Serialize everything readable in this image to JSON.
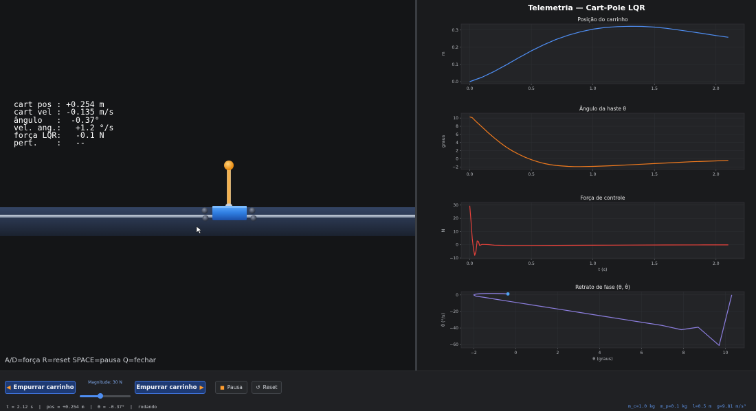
{
  "hud": {
    "lines": [
      "cart pos : +0.254 m",
      "cart vel : -0.135 m/s",
      "ângulo   :  -0.37°",
      "vel. ang.:   +1.2 °/s",
      "força LQR:   -0.1 N",
      "pert.    :   --"
    ]
  },
  "help_text": "A/D=força R=reset SPACE=pausa Q=fechar",
  "telemetry": {
    "title": "Telemetria — Cart-Pole LQR",
    "plots": [
      {
        "title": "Posição do carrinho",
        "ylabel": "m",
        "xlabel": "",
        "color": "#4f8ff5",
        "xticks": [
          "0.0",
          "0.5",
          "1.0",
          "1.5",
          "2.0"
        ],
        "yticks": [
          "0.0",
          "0.1",
          "0.2",
          "0.3"
        ]
      },
      {
        "title": "Ângulo da haste θ",
        "ylabel": "graus",
        "xlabel": "",
        "color": "#f07a1e",
        "xticks": [
          "0.0",
          "0.5",
          "1.0",
          "1.5",
          "2.0"
        ],
        "yticks": [
          "−2",
          "0",
          "2",
          "4",
          "6",
          "8",
          "10"
        ]
      },
      {
        "title": "Força de controle",
        "ylabel": "N",
        "xlabel": "t (s)",
        "color": "#e8423b",
        "xticks": [
          "0.0",
          "0.5",
          "1.0",
          "1.5",
          "2.0"
        ],
        "yticks": [
          "−10",
          "0",
          "10",
          "20",
          "30"
        ]
      },
      {
        "title": "Retrato de fase  (θ, θ̇)",
        "ylabel": "θ̇ (°/s)",
        "xlabel": "θ (graus)",
        "color": "#8d7fe0",
        "marker_color": "#4fa3f5",
        "xticks": [
          "−2",
          "0",
          "2",
          "4",
          "6",
          "8",
          "10"
        ],
        "yticks": [
          "−60",
          "−40",
          "−20",
          "0"
        ]
      }
    ]
  },
  "chart_data": [
    {
      "type": "line",
      "title": "Posição do carrinho",
      "xlabel": "",
      "ylabel": "m",
      "xlim": [
        -0.07,
        2.23
      ],
      "ylim": [
        -0.012,
        0.335
      ],
      "series": [
        {
          "x": [
            0.0,
            0.1,
            0.2,
            0.3,
            0.4,
            0.5,
            0.6,
            0.7,
            0.8,
            0.9,
            1.0,
            1.1,
            1.2,
            1.3,
            1.4,
            1.5,
            1.6,
            1.7,
            1.8,
            1.9,
            2.0,
            2.1
          ],
          "values": [
            0.0,
            0.026,
            0.06,
            0.099,
            0.14,
            0.179,
            0.214,
            0.245,
            0.27,
            0.29,
            0.305,
            0.315,
            0.32,
            0.322,
            0.321,
            0.317,
            0.31,
            0.3,
            0.29,
            0.279,
            0.268,
            0.258
          ]
        }
      ]
    },
    {
      "type": "line",
      "title": "Ângulo da haste θ",
      "xlabel": "",
      "ylabel": "graus",
      "xlim": [
        -0.07,
        2.23
      ],
      "ylim": [
        -2.6,
        11.2
      ],
      "series": [
        {
          "x": [
            0.0,
            0.02,
            0.05,
            0.1,
            0.15,
            0.2,
            0.25,
            0.3,
            0.35,
            0.4,
            0.45,
            0.5,
            0.55,
            0.6,
            0.65,
            0.7,
            0.75,
            0.8,
            0.85,
            0.9,
            1.0,
            1.1,
            1.2,
            1.3,
            1.4,
            1.5,
            1.6,
            1.7,
            1.8,
            1.9,
            2.0,
            2.1
          ],
          "values": [
            10.3,
            10.1,
            9.2,
            7.8,
            6.4,
            5.1,
            3.9,
            2.8,
            1.9,
            1.1,
            0.4,
            -0.2,
            -0.7,
            -1.1,
            -1.4,
            -1.6,
            -1.75,
            -1.85,
            -1.9,
            -1.9,
            -1.85,
            -1.75,
            -1.6,
            -1.45,
            -1.3,
            -1.15,
            -1.0,
            -0.85,
            -0.7,
            -0.6,
            -0.5,
            -0.37
          ]
        }
      ]
    },
    {
      "type": "line",
      "title": "Força de controle",
      "xlabel": "t (s)",
      "ylabel": "N",
      "xlim": [
        -0.07,
        2.23
      ],
      "ylim": [
        -10.5,
        32
      ],
      "series": [
        {
          "x": [
            0.0,
            0.01,
            0.02,
            0.03,
            0.04,
            0.05,
            0.06,
            0.07,
            0.08,
            0.1,
            0.15,
            0.2,
            0.3,
            0.5,
            0.7,
            1.0,
            1.3,
            1.6,
            1.9,
            2.1
          ],
          "values": [
            29.5,
            18.0,
            5.0,
            -3.0,
            -8.0,
            -5.0,
            3.0,
            2.5,
            -0.5,
            0.3,
            0.1,
            -0.3,
            -0.5,
            -0.5,
            -0.45,
            -0.35,
            -0.25,
            -0.15,
            -0.1,
            -0.1
          ]
        }
      ]
    },
    {
      "type": "line",
      "title": "Retrato de fase  (θ, θ̇)",
      "xlabel": "θ (graus)",
      "ylabel": "θ̇ (°/s)",
      "xlim": [
        -2.6,
        10.9
      ],
      "ylim": [
        -64,
        4
      ],
      "series": [
        {
          "x": [
            10.3,
            9.7,
            8.7,
            7.9,
            7.0,
            6.0,
            5.0,
            4.0,
            3.0,
            2.0,
            1.0,
            0.0,
            -1.0,
            -1.5,
            -1.9,
            -2.0,
            -1.9,
            -1.7,
            -1.4,
            -1.0,
            -0.6,
            -0.37
          ],
          "values": [
            0,
            -61,
            -39,
            -42,
            -37,
            -33,
            -29,
            -25,
            -21,
            -17,
            -13,
            -9,
            -5,
            -3,
            -1.5,
            0,
            1.0,
            1.5,
            1.8,
            1.8,
            1.6,
            1.2
          ]
        }
      ],
      "current_point": {
        "x": -0.37,
        "y": 1.2
      }
    }
  ],
  "controls": {
    "push_left_label": "Empurrar carrinho",
    "push_right_label": "Empurrar carrinho",
    "magnitude_label": "Magnitude: 30 N",
    "magnitude_fraction": 0.4,
    "pause_label": "Pausa",
    "reset_label": "Reset"
  },
  "status_text": "t = 2.12 s  |  pos = +0.254 m  |  θ = -0.37°  |  rodando",
  "params_text": "m_c=1.0 kg  m_p=0.1 kg  l=0.5 m  g=9.81 m/s²",
  "colors": {
    "accent": "#3d6fd4",
    "cart": "#2f7de0",
    "pole_tip": "#f5a623"
  }
}
